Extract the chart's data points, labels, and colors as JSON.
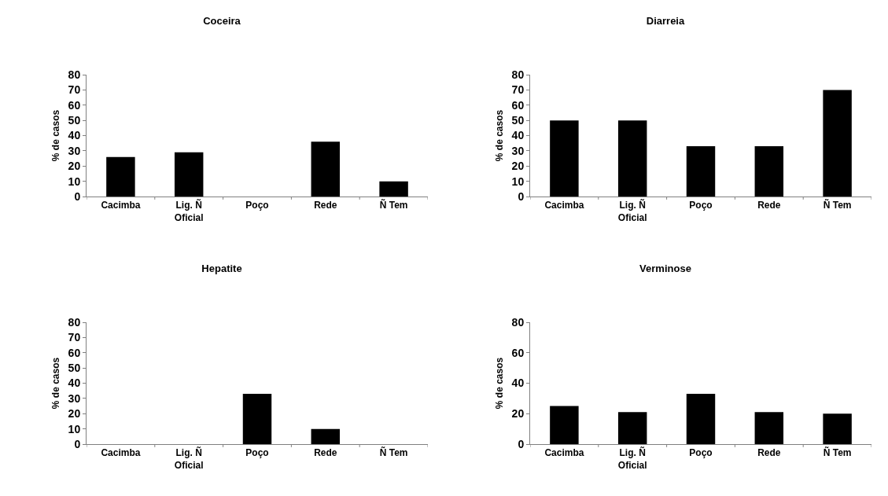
{
  "chart_data": [
    {
      "type": "bar",
      "title": "Coceira",
      "ylabel": "% de casos",
      "categories": [
        "Cacimba",
        "Lig. Ñ\nOficial",
        "Poço",
        "Rede",
        "Ñ Tem"
      ],
      "values": [
        26,
        29,
        0,
        36,
        10
      ],
      "color": "#000000",
      "ylim": [
        0,
        80
      ],
      "yticks": [
        0,
        10,
        20,
        30,
        40,
        50,
        60,
        70,
        80
      ],
      "grid": false,
      "legend": false
    },
    {
      "type": "bar",
      "title": "Diarreia",
      "ylabel": "% de casos",
      "categories": [
        "Cacimba",
        "Lig. Ñ\nOficial",
        "Poço",
        "Rede",
        "Ñ Tem"
      ],
      "values": [
        50,
        50,
        33,
        33,
        70
      ],
      "color": "#000000",
      "ylim": [
        0,
        80
      ],
      "yticks": [
        0,
        10,
        20,
        30,
        40,
        50,
        60,
        70,
        80
      ],
      "grid": false,
      "legend": false
    },
    {
      "type": "bar",
      "title": "Hepatite",
      "ylabel": "% de casos",
      "categories": [
        "Cacimba",
        "Lig. Ñ\nOficial",
        "Poço",
        "Rede",
        "Ñ Tem"
      ],
      "values": [
        0,
        0,
        33,
        10,
        0
      ],
      "color": "#000000",
      "ylim": [
        0,
        80
      ],
      "yticks": [
        0,
        10,
        20,
        30,
        40,
        50,
        60,
        70,
        80
      ],
      "grid": false,
      "legend": false
    },
    {
      "type": "bar",
      "title": "Verminose",
      "ylabel": "% de casos",
      "categories": [
        "Cacimba",
        "Lig. Ñ\nOficial",
        "Poço",
        "Rede",
        "Ñ Tem"
      ],
      "values": [
        25,
        21,
        33,
        21,
        20
      ],
      "color": "#000000",
      "ylim": [
        0,
        80
      ],
      "yticks": [
        0,
        20,
        40,
        60,
        80
      ],
      "grid": false,
      "legend": false
    }
  ]
}
